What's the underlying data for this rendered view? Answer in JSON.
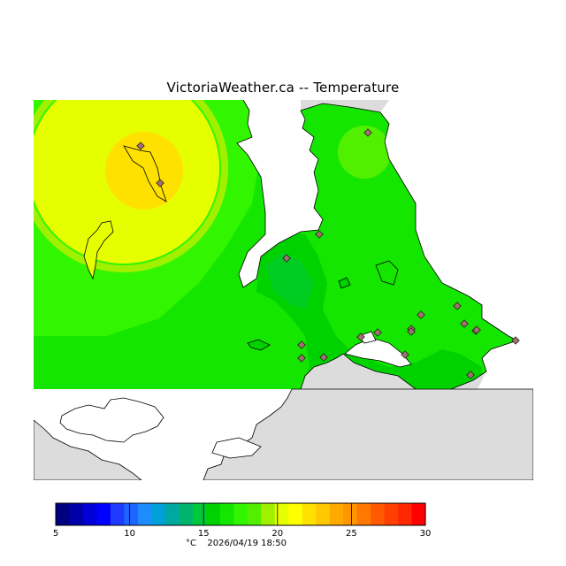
{
  "title": "VictoriaWeather.ca -- Temperature",
  "legend": {
    "ticks": [
      "5",
      "10",
      "15",
      "20",
      "25",
      "30"
    ],
    "colors": [
      "#000080",
      "#0000a8",
      "#0000d8",
      "#0000ff",
      "#1e3cff",
      "#1e64ff",
      "#1e8cff",
      "#00a0d8",
      "#00a8a0",
      "#00b46e",
      "#00c83c",
      "#00d200",
      "#14e600",
      "#32f500",
      "#50f000",
      "#a0f000",
      "#e6ff00",
      "#ffff00",
      "#ffe100",
      "#ffc800",
      "#ffaa00",
      "#ff9600",
      "#ff7800",
      "#ff5a00",
      "#ff4000",
      "#ff2800",
      "#ff0000"
    ]
  },
  "footer": {
    "unit": "°C",
    "timestamp": "2026/04/19 18:50"
  },
  "map": {
    "land_color": "#dcdcdc",
    "water_color": "#ffffff",
    "station_color": "#a07070",
    "stations": [
      {
        "id": "s1"
      },
      {
        "id": "s2"
      },
      {
        "id": "s3"
      },
      {
        "id": "s4"
      },
      {
        "id": "s5"
      },
      {
        "id": "s6"
      },
      {
        "id": "s7"
      },
      {
        "id": "s8"
      },
      {
        "id": "s9"
      },
      {
        "id": "s10"
      },
      {
        "id": "s11"
      },
      {
        "id": "s12"
      },
      {
        "id": "s13"
      },
      {
        "id": "s14"
      },
      {
        "id": "s15"
      },
      {
        "id": "s16"
      },
      {
        "id": "s17"
      },
      {
        "id": "s18"
      },
      {
        "id": "s19"
      },
      {
        "id": "s20"
      }
    ]
  }
}
